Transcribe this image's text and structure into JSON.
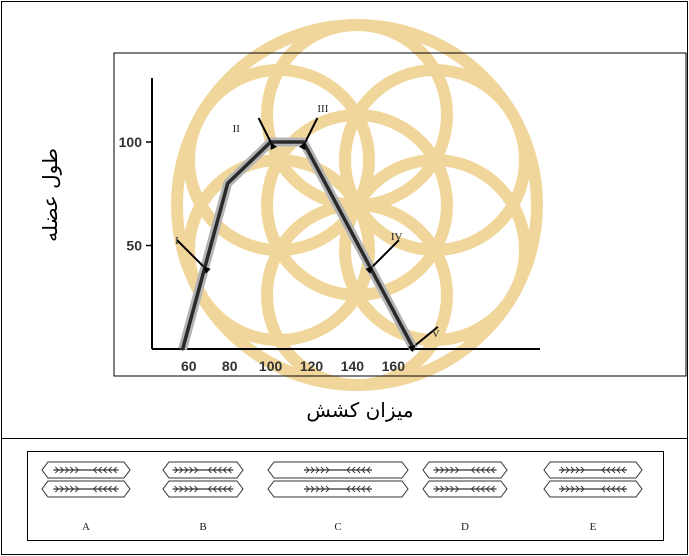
{
  "chart_data": {
    "type": "line",
    "xlabel": "میزان کشش",
    "ylabel": "طول عضله",
    "x_ticks": [
      60,
      80,
      100,
      120,
      140,
      160
    ],
    "y_ticks": [
      50,
      100
    ],
    "xlim": [
      42,
      180
    ],
    "ylim": [
      0,
      130
    ],
    "grid": false,
    "series": [
      {
        "x": [
          57,
          79,
          100,
          116,
          170
        ],
        "y": [
          0,
          80,
          100,
          100,
          0
        ]
      }
    ],
    "annotations": [
      {
        "label": "I",
        "x": 67,
        "y": 40
      },
      {
        "label": "II",
        "x": 100,
        "y": 100
      },
      {
        "label": "III",
        "x": 117,
        "y": 100
      },
      {
        "label": "IV",
        "x": 150,
        "y": 40
      },
      {
        "label": "V",
        "x": 171,
        "y": 2
      }
    ]
  },
  "diagram": {
    "items": [
      {
        "letter": "A"
      },
      {
        "letter": "B"
      },
      {
        "letter": "C"
      },
      {
        "letter": "D"
      },
      {
        "letter": "E"
      }
    ]
  }
}
